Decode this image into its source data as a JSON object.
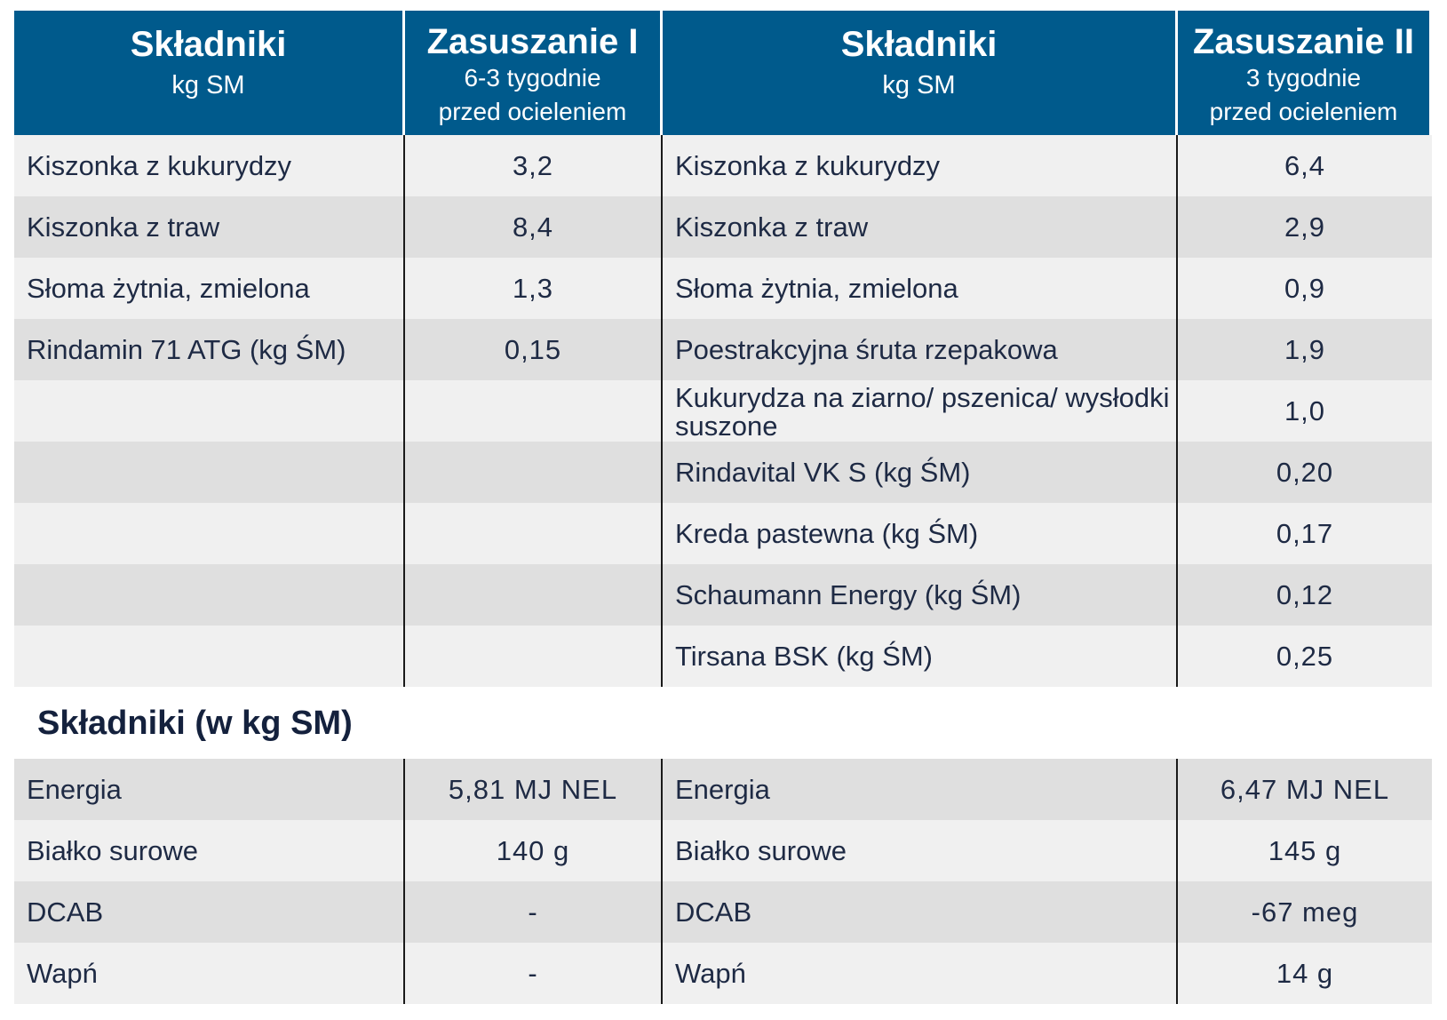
{
  "header": {
    "col1_title": "Składniki",
    "col1_sub": "kg SM",
    "col2_title": "Zasuszanie I",
    "col2_sub1": "6-3 tygodnie",
    "col2_sub2": "przed ocieleniem",
    "col3_title": "Składniki",
    "col3_sub": "kg SM",
    "col4_title": "Zasuszanie II",
    "col4_sub1": "3 tygodnie",
    "col4_sub2": "przed ocieleniem"
  },
  "rows": [
    {
      "ing1": "Kiszonka z kukurydzy",
      "val1": "3,2",
      "ing2": "Kiszonka z kukurydzy",
      "val2": "6,4"
    },
    {
      "ing1": "Kiszonka z traw",
      "val1": "8,4",
      "ing2": "Kiszonka z traw",
      "val2": "2,9"
    },
    {
      "ing1": "Słoma żytnia, zmielona",
      "val1": "1,3",
      "ing2": "Słoma żytnia, zmielona",
      "val2": "0,9"
    },
    {
      "ing1": "Rindamin 71 ATG (kg ŚM)",
      "val1": "0,15",
      "ing2": "Poestrakcyjna śruta rzepakowa",
      "val2": "1,9"
    },
    {
      "ing1": "",
      "val1": "",
      "ing2": "Kukurydza na ziarno/ pszenica/ wysłodki suszone",
      "val2": "1,0"
    },
    {
      "ing1": "",
      "val1": "",
      "ing2": "Rindavital VK S (kg ŚM)",
      "val2": "0,20"
    },
    {
      "ing1": "",
      "val1": "",
      "ing2": "Kreda pastewna (kg ŚM)",
      "val2": "0,17"
    },
    {
      "ing1": "",
      "val1": "",
      "ing2": "Schaumann Energy (kg ŚM)",
      "val2": "0,12"
    },
    {
      "ing1": "",
      "val1": "",
      "ing2": "Tirsana BSK (kg ŚM)",
      "val2": "0,25"
    }
  ],
  "section_title": "Składniki (w kg SM)",
  "nutrients": [
    {
      "name1": "Energia",
      "val1": "5,81 MJ NEL",
      "name2": "Energia",
      "val2": "6,47 MJ NEL"
    },
    {
      "name1": "Białko surowe",
      "val1": "140 g",
      "name2": "Białko surowe",
      "val2": "145 g"
    },
    {
      "name1": "DCAB",
      "val1": "-",
      "name2": "DCAB",
      "val2": "-67 meg"
    },
    {
      "name1": "Wapń",
      "val1": "-",
      "name2": "Wapń",
      "val2": "14 g"
    }
  ]
}
